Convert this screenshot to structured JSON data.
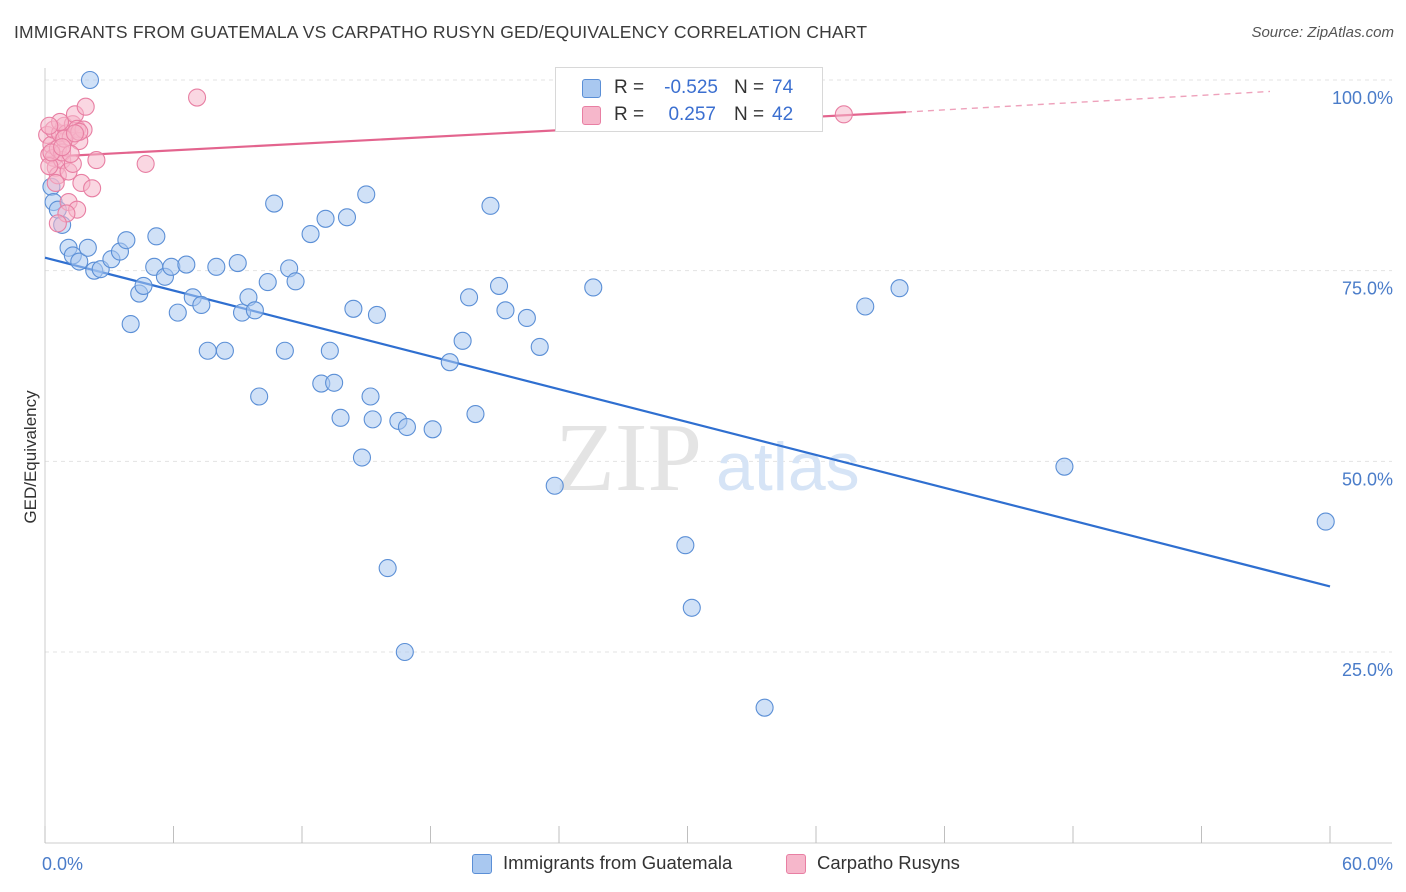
{
  "title": "IMMIGRANTS FROM GUATEMALA VS CARPATHO RUSYN GED/EQUIVALENCY CORRELATION CHART",
  "source": "Source: ZipAtlas.com",
  "watermark": {
    "zip": "ZIP",
    "atlas": "atlas"
  },
  "colors": {
    "blue_fill": "#a9c8f0",
    "blue_stroke": "#5b8fd6",
    "blue_line": "#2f6fd0",
    "pink_fill": "#f6b7cb",
    "pink_stroke": "#e87fa3",
    "pink_line": "#e3648e",
    "grid": "#e3e3e3",
    "tick_label": "#4a7cc9"
  },
  "legend": {
    "rows": [
      {
        "r_label": "R =",
        "r_value": "-0.525",
        "n_label": "N =",
        "n_value": "74"
      },
      {
        "r_label": "R =",
        "r_value": "0.257",
        "n_label": "N =",
        "n_value": "42"
      }
    ]
  },
  "bottom_legend": [
    "Immigrants from Guatemala",
    "Carpatho Rusyns"
  ],
  "chart_data": {
    "type": "scatter",
    "title": "IMMIGRANTS FROM GUATEMALA VS CARPATHO RUSYN GED/EQUIVALENCY CORRELATION CHART",
    "xlabel": "",
    "ylabel": "GED/Equivalency",
    "xlim": [
      0,
      60
    ],
    "ylim": [
      0,
      105
    ],
    "x_tick_labels": [
      "0.0%",
      "60.0%"
    ],
    "y_tick_labels": [
      "25.0%",
      "50.0%",
      "75.0%",
      "100.0%"
    ],
    "y_ticks": [
      25,
      50,
      75,
      100
    ],
    "grid": "horizontal dashed",
    "legend_placement": "top-center",
    "series": [
      {
        "name": "Immigrants from Guatemala",
        "color": "#a9c8f0",
        "trend": {
          "x": [
            0,
            60
          ],
          "y": [
            76.7,
            33.6
          ]
        },
        "points": [
          [
            2.1,
            100
          ],
          [
            0.3,
            86
          ],
          [
            0.4,
            84
          ],
          [
            0.6,
            83
          ],
          [
            0.8,
            81
          ],
          [
            1.1,
            78
          ],
          [
            1.3,
            77
          ],
          [
            1.6,
            76.2
          ],
          [
            2.0,
            78
          ],
          [
            2.3,
            75
          ],
          [
            2.6,
            75.2
          ],
          [
            3.1,
            76.5
          ],
          [
            3.5,
            77.5
          ],
          [
            3.8,
            79
          ],
          [
            4.0,
            68
          ],
          [
            4.4,
            72
          ],
          [
            4.6,
            73
          ],
          [
            5.1,
            75.5
          ],
          [
            5.2,
            79.5
          ],
          [
            5.6,
            74.2
          ],
          [
            5.9,
            75.5
          ],
          [
            6.2,
            69.5
          ],
          [
            6.6,
            75.8
          ],
          [
            6.9,
            71.5
          ],
          [
            7.3,
            70.5
          ],
          [
            7.6,
            64.5
          ],
          [
            8.0,
            75.5
          ],
          [
            8.4,
            64.5
          ],
          [
            9.0,
            76
          ],
          [
            9.2,
            69.5
          ],
          [
            9.5,
            71.5
          ],
          [
            9.8,
            69.8
          ],
          [
            10.0,
            58.5
          ],
          [
            10.4,
            73.5
          ],
          [
            10.7,
            83.8
          ],
          [
            11.2,
            64.5
          ],
          [
            11.4,
            75.3
          ],
          [
            11.7,
            73.6
          ],
          [
            12.4,
            79.8
          ],
          [
            12.9,
            60.2
          ],
          [
            13.3,
            64.5
          ],
          [
            13.5,
            60.3
          ],
          [
            13.8,
            55.7
          ],
          [
            14.1,
            82
          ],
          [
            14.4,
            70
          ],
          [
            14.8,
            50.5
          ],
          [
            15.0,
            85
          ],
          [
            15.2,
            58.5
          ],
          [
            15.5,
            69.2
          ],
          [
            16.0,
            36
          ],
          [
            16.5,
            55.3
          ],
          [
            16.9,
            54.5
          ],
          [
            18.1,
            54.2
          ],
          [
            18.9,
            63
          ],
          [
            19.5,
            65.8
          ],
          [
            19.8,
            71.5
          ],
          [
            20.1,
            56.2
          ],
          [
            20.8,
            83.5
          ],
          [
            21.2,
            73
          ],
          [
            21.5,
            69.8
          ],
          [
            22.5,
            68.8
          ],
          [
            23.1,
            65
          ],
          [
            23.8,
            46.8
          ],
          [
            25.6,
            72.8
          ],
          [
            29.9,
            39
          ],
          [
            30.2,
            30.8
          ],
          [
            33.6,
            17.7
          ],
          [
            38.3,
            70.3
          ],
          [
            39.9,
            72.7
          ],
          [
            47.6,
            49.3
          ],
          [
            59.8,
            42.1
          ],
          [
            16.8,
            25
          ],
          [
            13.1,
            81.8
          ],
          [
            15.3,
            55.5
          ]
        ]
      },
      {
        "name": "Carpatho Rusyns",
        "color": "#f6b7cb",
        "trend": {
          "x": [
            0,
            60
          ],
          "y": [
            89.9,
            98.7
          ],
          "solid_until_x": 40.2
        },
        "points": [
          [
            0.1,
            92.8
          ],
          [
            0.2,
            90.2
          ],
          [
            0.3,
            91.5
          ],
          [
            0.4,
            89.8
          ],
          [
            0.4,
            93.5
          ],
          [
            0.5,
            88.5
          ],
          [
            0.6,
            91
          ],
          [
            0.6,
            87.5
          ],
          [
            0.7,
            93
          ],
          [
            0.8,
            89.5
          ],
          [
            0.8,
            90.5
          ],
          [
            0.9,
            94
          ],
          [
            1.0,
            93
          ],
          [
            1.1,
            88
          ],
          [
            1.1,
            84
          ],
          [
            1.2,
            92.5
          ],
          [
            1.3,
            89
          ],
          [
            1.3,
            94.2
          ],
          [
            1.4,
            95.5
          ],
          [
            1.5,
            83
          ],
          [
            1.5,
            93.6
          ],
          [
            1.6,
            92
          ],
          [
            1.7,
            86.5
          ],
          [
            1.8,
            93.5
          ],
          [
            1.9,
            96.5
          ],
          [
            2.2,
            85.8
          ],
          [
            2.4,
            89.5
          ],
          [
            4.7,
            89
          ],
          [
            7.1,
            97.7
          ],
          [
            37.3,
            95.5
          ],
          [
            0.2,
            88.7
          ],
          [
            0.5,
            86.5
          ],
          [
            0.7,
            94.5
          ],
          [
            0.9,
            92.3
          ],
          [
            1.2,
            90.3
          ],
          [
            1.0,
            82.5
          ],
          [
            0.3,
            90.5
          ],
          [
            1.6,
            93.2
          ],
          [
            0.6,
            81.2
          ],
          [
            0.8,
            91.2
          ],
          [
            1.4,
            93
          ],
          [
            0.2,
            94
          ]
        ]
      }
    ]
  }
}
